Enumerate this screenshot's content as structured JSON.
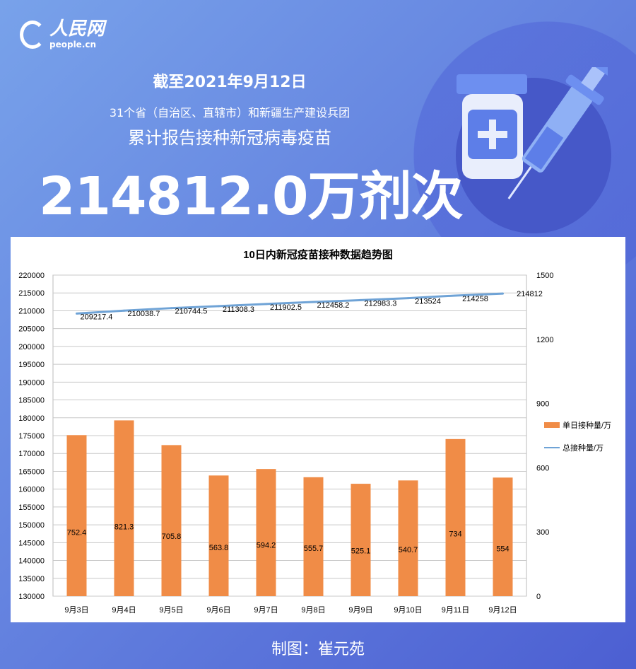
{
  "header": {
    "logo_cn": "人民网",
    "logo_en": "people.cn",
    "date_line": "截至2021年9月12日",
    "region_line": "31个省（自治区、直辖市）和新疆生产建设兵团",
    "desc_line": "累计报告接种新冠病毒疫苗",
    "total": "214812.0万剂次",
    "illustration": "vaccine-vial-and-syringe-icon"
  },
  "footer": {
    "credit": "制图：崔元苑"
  },
  "colors": {
    "bar": "#f08c47",
    "line": "#6fa3d6",
    "bg_start": "#78a2ea",
    "bg_end": "#4c5fd2"
  },
  "chart_data": {
    "type": "bar+line",
    "title": "10日内新冠疫苗接种数据趋势图",
    "categories": [
      "9月3日",
      "9月4日",
      "9月5日",
      "9月6日",
      "9月7日",
      "9月8日",
      "9月9日",
      "9月10日",
      "9月11日",
      "9月12日"
    ],
    "series": [
      {
        "name": "单日接种量/万",
        "type": "bar",
        "axis": "right",
        "values": [
          752.4,
          821.3,
          705.8,
          563.8,
          594.2,
          555.7,
          525.1,
          540.7,
          734,
          554
        ]
      },
      {
        "name": "总接种量/万",
        "type": "line",
        "axis": "left",
        "values": [
          209217.4,
          210038.7,
          210744.5,
          211308.3,
          211902.5,
          212458.2,
          212983.3,
          213524,
          214258,
          214812
        ]
      }
    ],
    "left_axis": {
      "min": 130000,
      "max": 220000,
      "step": 5000
    },
    "right_axis": {
      "min": 0,
      "max": 1500,
      "step": 300
    },
    "grid": true,
    "legend": "right"
  }
}
